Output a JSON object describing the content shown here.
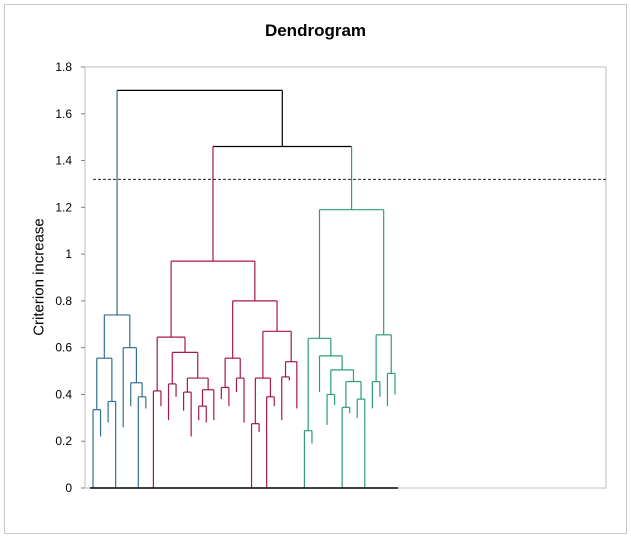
{
  "chart_data": {
    "type": "dendrogram",
    "title": "Dendrogram",
    "ylabel": "Criterion increase",
    "xlabel": "",
    "ylim": [
      0,
      1.8
    ],
    "yticks": [
      "0",
      "0.2",
      "0.4",
      "0.6",
      "0.8",
      "1",
      "1.2",
      "1.4",
      "1.6",
      "1.8"
    ],
    "ytick_values": [
      0,
      0.2,
      0.4,
      0.6,
      0.8,
      1.0,
      1.2,
      1.4,
      1.6,
      1.8
    ],
    "cut_level": 1.32,
    "grid": false,
    "clusters": [
      {
        "color": "#31708f",
        "leaves": 11,
        "merge_height": 0.74
      },
      {
        "color": "#a8174a",
        "leaves": 35,
        "merge_height": 0.97
      },
      {
        "color": "#2e9c7a",
        "leaves": 22,
        "merge_height": 1.19
      }
    ],
    "top_merges": [
      {
        "clusters": [
          2,
          3
        ],
        "height": 1.46
      },
      {
        "clusters": [
          1,
          "2+3"
        ],
        "height": 1.7
      }
    ],
    "tree": {
      "h": 1.7,
      "c": [
        {
          "h": 0.74,
          "col": 0,
          "c": [
            {
              "h": 0.555,
              "c": [
                {
                  "h": 0.335,
                  "c": [
                    {},
                    {
                      "h": 0.22
                    }
                  ]
                },
                {
                  "h": 0.37,
                  "c": [
                    {
                      "h": 0.28
                    },
                    {}
                  ]
                }
              ]
            },
            {
              "h": 0.6,
              "c": [
                {
                  "h": 0.26
                },
                {
                  "h": 0.45,
                  "c": [
                    {
                      "h": 0.35
                    },
                    {
                      "h": 0.39,
                      "c": [
                        {},
                        {
                          "h": 0.34
                        }
                      ]
                    }
                  ]
                }
              ]
            }
          ]
        },
        {
          "h": 1.46,
          "c": [
            {
              "h": 0.97,
              "col": 1,
              "c": [
                {
                  "h": 0.645,
                  "c": [
                    {
                      "h": 0.415,
                      "c": [
                        {},
                        {
                          "h": 0.35
                        }
                      ]
                    },
                    {
                      "h": 0.58,
                      "c": [
                        {
                          "h": 0.445,
                          "c": [
                            {
                              "h": 0.29
                            },
                            {
                              "h": 0.39
                            }
                          ]
                        },
                        {
                          "h": 0.47,
                          "c": [
                            {
                              "h": 0.41,
                              "c": [
                                {
                                  "h": 0.33
                                },
                                {
                                  "h": 0.22
                                }
                              ]
                            },
                            {
                              "h": 0.42,
                              "c": [
                                {
                                  "h": 0.35,
                                  "c": [
                                    {
                                      "h": 0.29
                                    },
                                    {
                                      "h": 0.28
                                    }
                                  ]
                                },
                                {
                                  "h": 0.29
                                }
                              ]
                            }
                          ]
                        }
                      ]
                    }
                  ]
                },
                {
                  "h": 0.8,
                  "c": [
                    {
                      "h": 0.555,
                      "c": [
                        {
                          "h": 0.43,
                          "c": [
                            {
                              "h": 0.38
                            },
                            {
                              "h": 0.35
                            }
                          ]
                        },
                        {
                          "h": 0.47,
                          "c": [
                            {
                              "h": 0.41
                            },
                            {
                              "h": 0.28
                            }
                          ]
                        }
                      ]
                    },
                    {
                      "h": 0.67,
                      "c": [
                        {
                          "h": 0.47,
                          "c": [
                            {
                              "h": 0.275,
                              "c": [
                                {},
                                {
                                  "h": 0.24
                                }
                              ]
                            },
                            {
                              "h": 0.39,
                              "c": [
                                {},
                                {
                                  "h": 0.35
                                }
                              ]
                            }
                          ]
                        },
                        {
                          "h": 0.54,
                          "c": [
                            {
                              "h": 0.475,
                              "c": [
                                {
                                  "h": 0.29
                                },
                                {
                                  "h": 0.46
                                }
                              ]
                            },
                            {
                              "h": 0.34
                            }
                          ]
                        }
                      ]
                    }
                  ]
                }
              ]
            },
            {
              "h": 1.19,
              "col": 2,
              "c": [
                {
                  "h": 0.64,
                  "c": [
                    {
                      "h": 0.245,
                      "c": [
                        {},
                        {
                          "h": 0.19
                        }
                      ]
                    },
                    {
                      "h": 0.565,
                      "c": [
                        {
                          "h": 0.41
                        },
                        {
                          "h": 0.505,
                          "c": [
                            {
                              "h": 0.4,
                              "c": [
                                {
                                  "h": 0.27
                                },
                                {
                                  "h": 0.355
                                }
                              ]
                            },
                            {
                              "h": 0.455,
                              "c": [
                                {
                                  "h": 0.345,
                                  "c": [
                                    {},
                                    {
                                      "h": 0.32
                                    }
                                  ]
                                },
                                {
                                  "h": 0.38,
                                  "c": [
                                    {
                                      "h": 0.3
                                    },
                                    {}
                                  ]
                                }
                              ]
                            }
                          ]
                        }
                      ]
                    }
                  ]
                },
                {
                  "h": 0.655,
                  "c": [
                    {
                      "h": 0.455,
                      "c": [
                        {
                          "h": 0.34
                        },
                        {
                          "h": 0.39
                        }
                      ]
                    },
                    {
                      "h": 0.49,
                      "c": [
                        {
                          "h": 0.35
                        },
                        {
                          "h": 0.4
                        }
                      ]
                    }
                  ]
                }
              ]
            }
          ]
        }
      ]
    }
  }
}
